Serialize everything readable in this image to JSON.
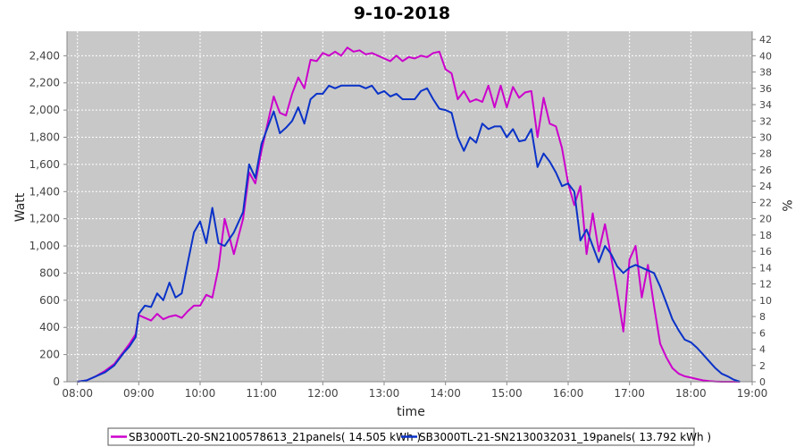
{
  "chart_data": {
    "type": "line",
    "title": "9-10-2018",
    "xlabel": "time",
    "ylabel": "Watt",
    "y2label": "%",
    "x_ticks": [
      "08:00",
      "09:00",
      "10:00",
      "11:00",
      "12:00",
      "13:00",
      "14:00",
      "15:00",
      "16:00",
      "17:00",
      "18:00",
      "19:00"
    ],
    "y_ticks": [
      "0",
      "200",
      "400",
      "600",
      "800",
      "1,000",
      "1,200",
      "1,400",
      "1,600",
      "1,800",
      "2,000",
      "2,200",
      "2,400"
    ],
    "y2_ticks": [
      "0",
      "2",
      "4",
      "6",
      "8",
      "10",
      "12",
      "14",
      "16",
      "18",
      "20",
      "22",
      "24",
      "26",
      "28",
      "30",
      "32",
      "34",
      "36",
      "38",
      "40",
      "42"
    ],
    "xlim_hours": [
      7.83,
      19.0
    ],
    "ylim": [
      0,
      2580
    ],
    "y2lim": [
      0,
      43
    ],
    "grid": true,
    "legend_position": "bottom",
    "colors": {
      "plot_bg": "#c8c8c8",
      "grid": "#ffffff"
    },
    "series": [
      {
        "name": "SB3000TL-20-SN2100578613_21panels( 14.505 kWh )",
        "color": "#cc00cc",
        "x": [
          8.0,
          8.15,
          8.3,
          8.45,
          8.6,
          8.75,
          8.85,
          8.95,
          9.0,
          9.1,
          9.2,
          9.3,
          9.4,
          9.5,
          9.6,
          9.7,
          9.8,
          9.9,
          10.0,
          10.1,
          10.2,
          10.3,
          10.4,
          10.55,
          10.7,
          10.8,
          10.9,
          11.0,
          11.1,
          11.2,
          11.3,
          11.4,
          11.5,
          11.6,
          11.7,
          11.8,
          11.9,
          12.0,
          12.1,
          12.2,
          12.3,
          12.4,
          12.5,
          12.6,
          12.7,
          12.8,
          12.9,
          13.0,
          13.1,
          13.2,
          13.3,
          13.4,
          13.5,
          13.6,
          13.7,
          13.8,
          13.9,
          14.0,
          14.1,
          14.2,
          14.3,
          14.4,
          14.5,
          14.6,
          14.7,
          14.8,
          14.9,
          15.0,
          15.1,
          15.2,
          15.3,
          15.4,
          15.5,
          15.6,
          15.7,
          15.8,
          15.9,
          16.0,
          16.1,
          16.2,
          16.3,
          16.4,
          16.5,
          16.6,
          16.7,
          16.8,
          16.9,
          17.0,
          17.1,
          17.2,
          17.3,
          17.4,
          17.5,
          17.6,
          17.7,
          17.8,
          17.9,
          18.0,
          18.1,
          18.2,
          18.3,
          18.4,
          18.5,
          18.6,
          18.7,
          18.8
        ],
        "values": [
          0,
          10,
          40,
          80,
          130,
          220,
          280,
          350,
          490,
          470,
          450,
          500,
          460,
          480,
          490,
          470,
          520,
          560,
          560,
          640,
          620,
          840,
          1200,
          940,
          1200,
          1540,
          1460,
          1700,
          1900,
          2100,
          1980,
          1960,
          2120,
          2240,
          2160,
          2370,
          2360,
          2420,
          2400,
          2430,
          2400,
          2460,
          2430,
          2440,
          2410,
          2420,
          2400,
          2380,
          2360,
          2400,
          2360,
          2390,
          2380,
          2400,
          2390,
          2420,
          2430,
          2300,
          2270,
          2080,
          2140,
          2060,
          2080,
          2060,
          2180,
          2020,
          2180,
          2020,
          2170,
          2090,
          2130,
          2140,
          1800,
          2090,
          1900,
          1880,
          1720,
          1460,
          1300,
          1440,
          940,
          1240,
          960,
          1160,
          920,
          660,
          370,
          900,
          1000,
          620,
          860,
          560,
          280,
          180,
          100,
          60,
          40,
          30,
          20,
          10,
          5,
          2,
          0,
          0,
          0,
          0
        ]
      },
      {
        "name": "SB3000TL-21-SN2130032031_19panels( 13.792 kWh )",
        "color": "#0a32c8",
        "x": [
          8.0,
          8.15,
          8.3,
          8.45,
          8.6,
          8.75,
          8.85,
          8.95,
          9.0,
          9.1,
          9.2,
          9.3,
          9.4,
          9.5,
          9.6,
          9.7,
          9.8,
          9.9,
          10.0,
          10.1,
          10.2,
          10.3,
          10.4,
          10.55,
          10.7,
          10.8,
          10.9,
          11.0,
          11.1,
          11.2,
          11.3,
          11.4,
          11.5,
          11.6,
          11.7,
          11.8,
          11.9,
          12.0,
          12.1,
          12.2,
          12.3,
          12.4,
          12.5,
          12.6,
          12.7,
          12.8,
          12.9,
          13.0,
          13.1,
          13.2,
          13.3,
          13.4,
          13.5,
          13.6,
          13.7,
          13.8,
          13.9,
          14.0,
          14.1,
          14.2,
          14.3,
          14.4,
          14.5,
          14.6,
          14.7,
          14.8,
          14.9,
          15.0,
          15.1,
          15.2,
          15.3,
          15.4,
          15.5,
          15.6,
          15.7,
          15.8,
          15.9,
          16.0,
          16.1,
          16.2,
          16.3,
          16.4,
          16.5,
          16.6,
          16.7,
          16.8,
          16.9,
          17.0,
          17.1,
          17.2,
          17.3,
          17.4,
          17.5,
          17.6,
          17.7,
          17.8,
          17.9,
          18.0,
          18.1,
          18.2,
          18.3,
          18.4,
          18.5,
          18.6,
          18.7,
          18.8
        ],
        "values": [
          0,
          10,
          40,
          70,
          120,
          210,
          260,
          330,
          500,
          560,
          550,
          650,
          600,
          730,
          620,
          650,
          880,
          1100,
          1180,
          1020,
          1280,
          1020,
          1000,
          1100,
          1250,
          1600,
          1500,
          1750,
          1870,
          1990,
          1830,
          1870,
          1920,
          2020,
          1900,
          2080,
          2120,
          2120,
          2180,
          2160,
          2180,
          2180,
          2180,
          2180,
          2160,
          2180,
          2120,
          2140,
          2100,
          2120,
          2080,
          2080,
          2080,
          2140,
          2160,
          2080,
          2010,
          2000,
          1980,
          1800,
          1700,
          1800,
          1760,
          1900,
          1860,
          1880,
          1880,
          1800,
          1860,
          1770,
          1780,
          1860,
          1580,
          1680,
          1620,
          1540,
          1440,
          1460,
          1400,
          1040,
          1120,
          1000,
          880,
          1000,
          940,
          850,
          800,
          840,
          860,
          840,
          820,
          800,
          700,
          580,
          460,
          380,
          310,
          290,
          250,
          200,
          150,
          100,
          60,
          40,
          15,
          0
        ]
      }
    ]
  }
}
